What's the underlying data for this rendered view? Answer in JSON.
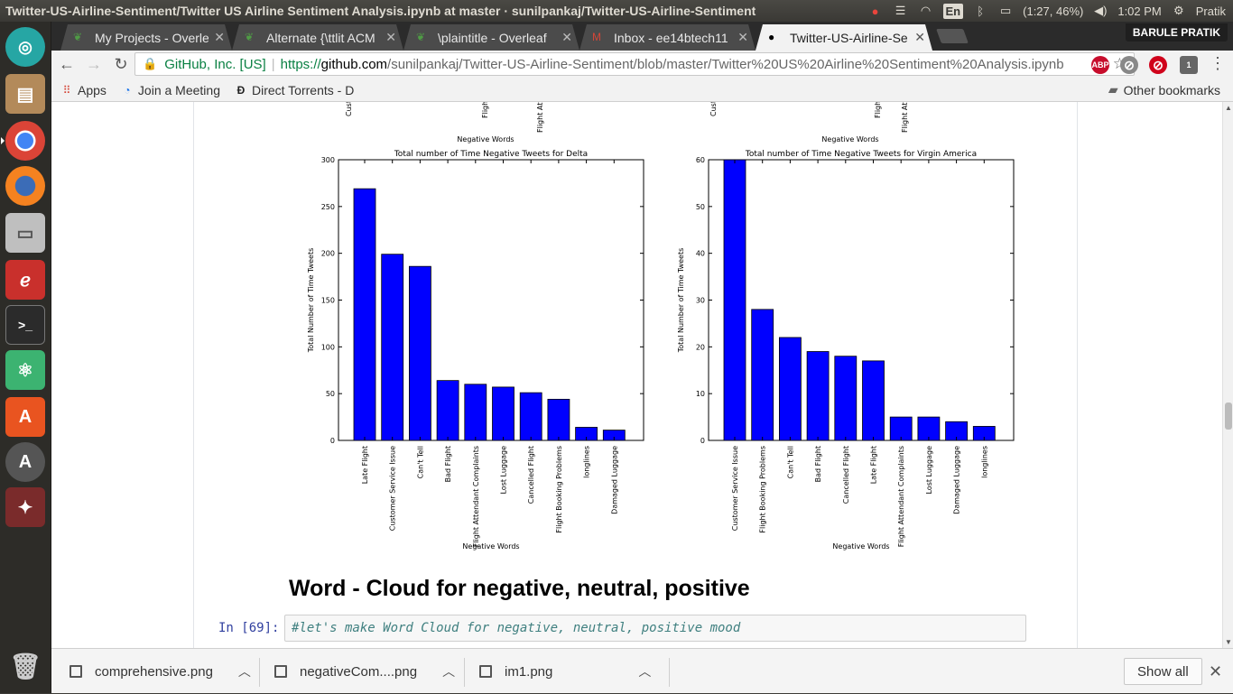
{
  "topbar": {
    "window_title": "Twitter-US-Airline-Sentiment/Twitter US Airline Sentiment Analysis.ipynb at master · sunilpankaj/Twitter-US-Airline-Sentiment",
    "input_method": "En",
    "battery": "(1:27, 46%)",
    "clock": "1:02 PM",
    "user": "Pratik"
  },
  "tabs": [
    {
      "label": "My Projects - Overleaf",
      "icon": "overleaf-icon"
    },
    {
      "label": "Alternate {\\ttlit ACM",
      "icon": "overleaf-icon"
    },
    {
      "label": "\\plaintitle - Overleaf",
      "icon": "overleaf-icon"
    },
    {
      "label": "Inbox - ee14btech11",
      "icon": "gmail-icon"
    },
    {
      "label": "Twitter-US-Airline-Se",
      "icon": "github-icon"
    }
  ],
  "profile_name": "BARULE PRATIK",
  "omnibox": {
    "site_identity": "GitHub, Inc. [US]",
    "url_protocol": "https://",
    "url_host": "github.com",
    "url_path": "/sunilpankaj/Twitter-US-Airline-Sentiment/blob/master/Twitter%20US%20Airline%20Sentiment%20Analysis.ipynb"
  },
  "extensions": [
    {
      "name": "adblock-plus-icon",
      "label": "ABP",
      "color": "#c70d2c"
    },
    {
      "name": "ghostery-icon",
      "label": "⊘",
      "color": "#888888"
    },
    {
      "name": "block-icon",
      "label": "⊘",
      "color": "#d0021b"
    },
    {
      "name": "vpn-shield-icon",
      "label": "1",
      "color": "#666666"
    }
  ],
  "bookmarks": [
    {
      "label": "Apps",
      "icon": "apps-grid-icon"
    },
    {
      "label": "Join a Meeting",
      "icon": "meeting-icon"
    },
    {
      "label": "Direct Torrents - D",
      "icon": "torrent-icon"
    }
  ],
  "other_bookmarks": "Other bookmarks",
  "top_partial_plots": [
    {
      "xlabel": "Negative Words",
      "tick_fragments": [
        "Cust",
        "Fligh",
        "Flight Att"
      ]
    },
    {
      "xlabel": "Negative Words",
      "tick_fragments": [
        "Cust",
        "Fligh",
        "Flight Att"
      ]
    }
  ],
  "chart_data": [
    {
      "type": "bar",
      "title": "Total number of Time Negative Tweets for Delta",
      "xlabel": "Negative Words",
      "ylabel": "Total Number of Time Tweets",
      "categories": [
        "Late Flight",
        "Customer Service Issue",
        "Can't Tell",
        "Bad Flight",
        "Flight Attendant Complaints",
        "Lost Luggage",
        "Cancelled Flight",
        "Flight Booking Problems",
        "longlines",
        "Damaged Luggage"
      ],
      "values": [
        269,
        199,
        186,
        64,
        60,
        57,
        51,
        44,
        14,
        11
      ],
      "ylim": [
        0,
        300
      ],
      "yticks": [
        0,
        50,
        100,
        150,
        200,
        250,
        300
      ],
      "color": "#0000ff"
    },
    {
      "type": "bar",
      "title": "Total number of Time Negative Tweets for Virgin America",
      "xlabel": "Negative Words",
      "ylabel": "Total Number of Time Tweets",
      "categories": [
        "Customer Service Issue",
        "Flight Booking Problems",
        "Can't Tell",
        "Bad Flight",
        "Cancelled Flight",
        "Late Flight",
        "Flight Attendant Complaints",
        "Lost Luggage",
        "Damaged Luggage",
        "longlines"
      ],
      "values": [
        60,
        28,
        22,
        19,
        18,
        17,
        5,
        5,
        4,
        3
      ],
      "ylim": [
        0,
        60
      ],
      "yticks": [
        0,
        10,
        20,
        30,
        40,
        50,
        60
      ],
      "color": "#0000ff"
    }
  ],
  "notebook": {
    "heading": "Word - Cloud for negative, neutral, positive",
    "prompt": "In [69]:",
    "code": "#let's make Word Cloud for negative, neutral, positive mood"
  },
  "downloads": [
    {
      "filename": "comprehensive.png"
    },
    {
      "filename": "negativeCom....png"
    },
    {
      "filename": "im1.png"
    }
  ],
  "show_all_label": "Show all"
}
